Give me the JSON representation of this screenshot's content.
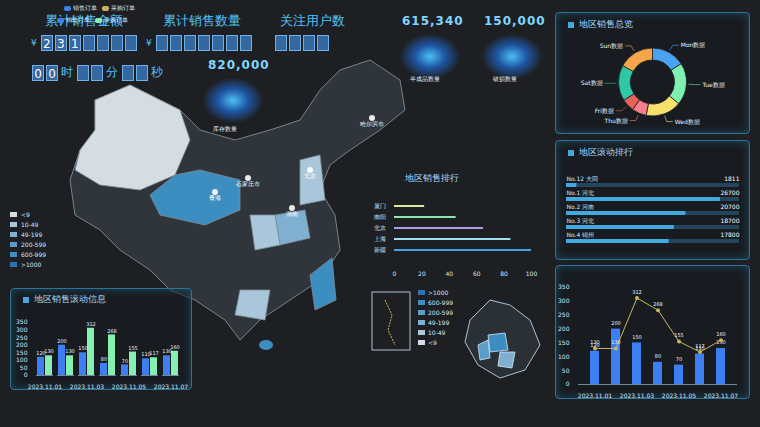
{
  "header": {
    "metrics": [
      {
        "label": "累计销售金额",
        "prefix": "¥",
        "digits": "231"
      },
      {
        "label": "累计销售数量",
        "prefix": "¥"
      },
      {
        "label": "关注用户数"
      }
    ],
    "timer": {
      "digits": "00",
      "units": [
        "时",
        "分",
        "秒"
      ]
    }
  },
  "stats": [
    {
      "value": 820000,
      "caption": "库存数量"
    },
    {
      "value": 615340,
      "caption": "半成品数量"
    },
    {
      "value": 150000,
      "caption": "破损数量"
    }
  ],
  "map": {
    "legend": {
      "labels": [
        "<9",
        "10-49",
        "49-199",
        "200-599",
        "600-999",
        ">1000"
      ],
      "colors": [
        "#d5dde3",
        "#a9c6da",
        "#7fb0d2",
        "#5b9dc8",
        "#3d8ec0",
        "#2a74b0"
      ]
    },
    "places": [
      "哈尔滨市",
      "青海",
      "石家庄市",
      "北京",
      "湖南"
    ]
  },
  "mini_map": {
    "legend": {
      "labels": [
        ">1000",
        "600-999",
        "200-599",
        "49-199",
        "10-49",
        "<9"
      ],
      "colors": [
        "#2a74b0",
        "#3d8ec0",
        "#5b9dc8",
        "#7fb0d2",
        "#a9c6da",
        "#d5dde3"
      ]
    }
  },
  "chart_data": [
    {
      "type": "pie",
      "title": "地区销售总览",
      "categories": [
        "Mon数据",
        "Tue数据",
        "Wed数据",
        "Thu数据",
        "Fri数据",
        "Sat数据",
        "Sun数据"
      ],
      "values": [
        16,
        20,
        17,
        7,
        6,
        17,
        17
      ],
      "colors": [
        "#4aa3f0",
        "#7ef0b0",
        "#f7e06b",
        "#f77e8a",
        "#e8605a",
        "#2fc7a5",
        "#f5a54a"
      ]
    },
    {
      "type": "bar",
      "orientation": "horizontal",
      "title": "地区销售排行",
      "categories": [
        "厦门",
        "南阳",
        "北京",
        "上海",
        "新疆"
      ],
      "values": [
        22,
        45,
        65,
        85,
        100
      ],
      "colors": [
        "#d6e89a",
        "#8fe3b0",
        "#a89ce8",
        "#9fe0f0",
        "#4aa3e0"
      ],
      "xlim": [
        0,
        100
      ],
      "xticks": [
        0,
        20,
        40,
        60,
        80,
        100
      ]
    },
    {
      "type": "bar",
      "orientation": "horizontal",
      "title": "地区滚动排行",
      "categories": [
        "No.12 大同",
        "No.1 河北",
        "No.2 河南",
        "No.3 河北",
        "No.4 锦州"
      ],
      "values": [
        1811,
        26700,
        20700,
        18700,
        17800
      ],
      "color": "#3fa9e0",
      "xlim": [
        0,
        30000
      ],
      "tick_labels": false,
      "data_labels": true
    },
    {
      "type": "bar",
      "title": "地区销售滚动信息",
      "categories": [
        "2023.11.01",
        null,
        "2023.11.03",
        null,
        "2023.11.05",
        null,
        "2023.11.07"
      ],
      "series": [
        {
          "name": "销售订单",
          "color": "#3d7ef0",
          "values": [
            120,
            200,
            150,
            80,
            70,
            110,
            130
          ]
        },
        {
          "name": "采购订单",
          "color": "#86f0b0",
          "values": [
            130,
            130,
            312,
            268,
            155,
            117,
            160
          ]
        }
      ],
      "ylim": [
        0,
        350
      ],
      "yticks": [
        0,
        50,
        100,
        150,
        200,
        250,
        300,
        350
      ],
      "data_labels": true,
      "legend": "top"
    },
    {
      "type": "bar",
      "categories": [
        "2023.11.01",
        null,
        "2023.11.03",
        null,
        "2023.11.05",
        null,
        "2023.11.07"
      ],
      "series": [
        {
          "name": "销售订单",
          "type": "bar",
          "color": "#3d7ef0",
          "values": [
            120,
            200,
            150,
            80,
            70,
            110,
            130
          ]
        },
        {
          "name": "采购订单",
          "type": "line",
          "marker": "circle",
          "color": "#c9b45c",
          "values": [
            130,
            130,
            312,
            268,
            155,
            117,
            160
          ]
        }
      ],
      "ylim": [
        0,
        350
      ],
      "yticks": [
        0,
        50,
        100,
        150,
        200,
        250,
        300,
        350
      ],
      "data_labels": true,
      "legend": "top"
    }
  ]
}
